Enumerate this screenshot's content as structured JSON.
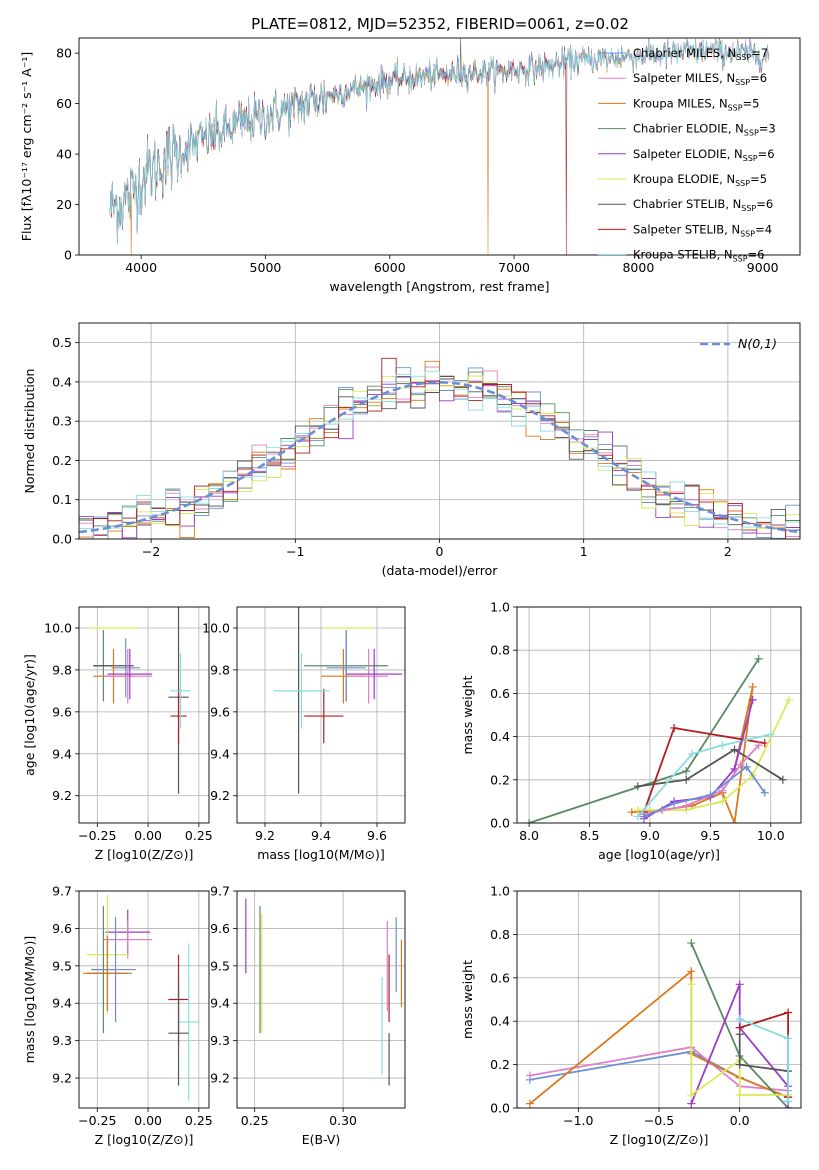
{
  "figure_title": "PLATE=0812, MJD=52352, FIBERID=0061, z=0.02",
  "colors": {
    "Chabrier MILES": "#6b8fd6",
    "Salpeter MILES": "#e07fc6",
    "Kroupa MILES": "#d97a1c",
    "Chabrier ELODIE": "#5a8a64",
    "Salpeter ELODIE": "#9b3dc8",
    "Kroupa ELODIE": "#d8ea5a",
    "Chabrier STELIB": "#555555",
    "Salpeter STELIB": "#b01e1e",
    "Kroupa STELIB": "#88dde0",
    "normal": "#6b8fd6"
  },
  "legend_labels": [
    {
      "base": "Chabrier MILES, N",
      "sub": "SSP",
      "tail": "=7",
      "key": "Chabrier MILES"
    },
    {
      "base": "Salpeter MILES, N",
      "sub": "SSP",
      "tail": "=6",
      "key": "Salpeter MILES"
    },
    {
      "base": "Kroupa MILES, N",
      "sub": "SSP",
      "tail": "=5",
      "key": "Kroupa MILES"
    },
    {
      "base": "Chabrier ELODIE, N",
      "sub": "SSP",
      "tail": "=3",
      "key": "Chabrier ELODIE"
    },
    {
      "base": "Salpeter ELODIE, N",
      "sub": "SSP",
      "tail": "=6",
      "key": "Salpeter ELODIE"
    },
    {
      "base": "Kroupa ELODIE, N",
      "sub": "SSP",
      "tail": "=5",
      "key": "Kroupa ELODIE"
    },
    {
      "base": "Chabrier STELIB, N",
      "sub": "SSP",
      "tail": "=6",
      "key": "Chabrier STELIB"
    },
    {
      "base": "Salpeter STELIB, N",
      "sub": "SSP",
      "tail": "=4",
      "key": "Salpeter STELIB"
    },
    {
      "base": "Kroupa STELIB, N",
      "sub": "SSP",
      "tail": "=6",
      "key": "Kroupa STELIB"
    }
  ],
  "chart_data": [
    {
      "id": "spectrum",
      "type": "line",
      "xlabel": "wavelength [Angstrom, rest frame]",
      "ylabel": "Flux [fλ10⁻¹⁷ erg cm⁻² s⁻¹ A⁻¹]",
      "xlim": [
        3500,
        9300
      ],
      "ylim": [
        0,
        86
      ],
      "xticks": [
        4000,
        5000,
        6000,
        7000,
        8000,
        9000
      ],
      "yticks": [
        0,
        20,
        40,
        60,
        80
      ],
      "legend": "top-right",
      "grid": false,
      "continuum": {
        "x": [
          3750,
          3900,
          4000,
          4200,
          4500,
          4800,
          5000,
          5200,
          5500,
          5800,
          6000,
          6300,
          6600,
          6900,
          7200,
          7500,
          7800,
          8000,
          8300,
          8600,
          8800,
          9000
        ],
        "y": [
          18,
          23,
          30,
          38,
          46,
          52,
          55,
          58,
          63,
          67,
          69,
          71,
          72,
          73,
          74,
          77,
          78,
          79,
          80,
          81,
          80,
          79
        ]
      },
      "features": [
        {
          "note": "drop",
          "series": "Kroupa MILES",
          "x": 3920,
          "y": 0
        },
        {
          "note": "drop",
          "series": "Kroupa MILES",
          "x": 6790,
          "y": 0
        },
        {
          "note": "drop",
          "series": "Salpeter STELIB",
          "x": 7420,
          "y": 0
        },
        {
          "note": "spike",
          "series": "Chabrier STELIB",
          "x": 6570,
          "y": 86
        }
      ]
    },
    {
      "id": "residuals",
      "type": "histogram",
      "xlabel": "(data-model)/error",
      "ylabel": "Normed distribution",
      "xlim": [
        -2.5,
        2.5
      ],
      "ylim": [
        0,
        0.55
      ],
      "xticks": [
        -2,
        -1,
        0,
        1,
        2
      ],
      "yticks": [
        0.0,
        0.1,
        0.2,
        0.3,
        0.4,
        0.5
      ],
      "grid": true,
      "legend": "top-right",
      "normal_label": "N(0,1)",
      "bin_width": 0.1
    },
    {
      "id": "age_vs_Z",
      "type": "errorbar",
      "xlabel": "Z [log10(Z/Z⊙)]",
      "ylabel": "age  [log10(age/yr)]",
      "xlim": [
        -0.34,
        0.3
      ],
      "ylim": [
        9.07,
        10.1
      ],
      "xticks": [
        -0.25,
        0.0,
        0.25
      ],
      "yticks": [
        9.2,
        9.4,
        9.6,
        9.8,
        10.0
      ],
      "grid": true,
      "points": [
        {
          "s": "Kroupa ELODIE",
          "x": -0.17,
          "xe": 0.12,
          "y": 10.0,
          "ye": 0.0
        },
        {
          "s": "Chabrier ELODIE",
          "x": -0.22,
          "xe": 0.05,
          "y": 9.82,
          "ye": 0.17
        },
        {
          "s": "Chabrier MILES",
          "x": -0.11,
          "xe": 0.07,
          "y": 9.81,
          "ye": 0.14
        },
        {
          "s": "Chabrier STELIB",
          "x": -0.17,
          "xe": 0.1,
          "y": 9.82,
          "ye": 0.0
        },
        {
          "s": "Kroupa MILES",
          "x": -0.17,
          "xe": 0.1,
          "y": 9.77,
          "ye": 0.13
        },
        {
          "s": "Salpeter MILES",
          "x": -0.1,
          "xe": 0.12,
          "y": 9.77,
          "ye": 0.13
        },
        {
          "s": "Salpeter ELODIE",
          "x": -0.09,
          "xe": 0.11,
          "y": 9.78,
          "ye": 0.12
        },
        {
          "s": "Chabrier STELIB",
          "x": 0.15,
          "xe": 0.05,
          "y": 9.67,
          "ye": 0.46
        },
        {
          "s": "Salpeter STELIB",
          "x": 0.15,
          "xe": 0.04,
          "y": 9.58,
          "ye": 0.13
        },
        {
          "s": "Kroupa STELIB",
          "x": 0.16,
          "xe": 0.05,
          "y": 9.7,
          "ye": 0.18
        }
      ]
    },
    {
      "id": "age_vs_mass",
      "type": "errorbar",
      "xlabel": "mass [log10(M/M⊙)]",
      "ylabel": "",
      "xlim": [
        9.1,
        9.7
      ],
      "ylim": [
        9.07,
        10.1
      ],
      "xticks": [
        9.2,
        9.4,
        9.6
      ],
      "yticks": [
        9.2,
        9.4,
        9.6,
        9.8,
        10.0
      ],
      "grid": true,
      "points": [
        {
          "s": "Kroupa ELODIE",
          "x": 9.5,
          "xe": 0.09,
          "y": 10.0,
          "ye": 0.0
        },
        {
          "s": "Chabrier ELODIE",
          "x": 9.49,
          "xe": 0.15,
          "y": 9.82,
          "ye": 0.17
        },
        {
          "s": "Chabrier MILES",
          "x": 9.49,
          "xe": 0.07,
          "y": 9.81,
          "ye": 0.14
        },
        {
          "s": "Kroupa MILES",
          "x": 9.48,
          "xe": 0.08,
          "y": 9.77,
          "ye": 0.13
        },
        {
          "s": "Salpeter MILES",
          "x": 9.57,
          "xe": 0.07,
          "y": 9.77,
          "ye": 0.13
        },
        {
          "s": "Salpeter ELODIE",
          "x": 9.59,
          "xe": 0.1,
          "y": 9.78,
          "ye": 0.12
        },
        {
          "s": "Chabrier STELIB",
          "x": 9.32,
          "xe": 0.0,
          "y": 9.67,
          "ye": 0.46
        },
        {
          "s": "Salpeter STELIB",
          "x": 9.41,
          "xe": 0.07,
          "y": 9.58,
          "ye": 0.13
        },
        {
          "s": "Kroupa STELIB",
          "x": 9.33,
          "xe": 0.1,
          "y": 9.7,
          "ye": 0.18
        }
      ]
    },
    {
      "id": "weight_vs_age",
      "type": "line",
      "xlabel": "age  [log10(age/yr)]",
      "ylabel": "mass weight",
      "xlim": [
        7.9,
        10.25
      ],
      "ylim": [
        0,
        1
      ],
      "xticks": [
        8.0,
        8.5,
        9.0,
        9.5,
        10.0
      ],
      "yticks": [
        0.0,
        0.2,
        0.4,
        0.6,
        0.8,
        1.0
      ],
      "grid": true,
      "series": [
        {
          "name": "Chabrier ELODIE",
          "x": [
            8.0,
            9.3,
            9.9
          ],
          "y": [
            0.0,
            0.24,
            0.76
          ]
        },
        {
          "name": "Kroupa MILES",
          "x": [
            8.85,
            9.1,
            9.35,
            9.6,
            9.7,
            9.85,
            9.7
          ],
          "y": [
            0.05,
            0.06,
            0.08,
            0.14,
            0.0,
            0.63,
            0.25
          ]
        },
        {
          "name": "Salpeter STELIB",
          "x": [
            8.95,
            9.2,
            9.95
          ],
          "y": [
            0.05,
            0.44,
            0.37
          ]
        },
        {
          "name": "Kroupa ELODIE",
          "x": [
            8.9,
            9.3,
            9.6,
            9.85,
            10.15
          ],
          "y": [
            0.06,
            0.06,
            0.1,
            0.22,
            0.57
          ]
        },
        {
          "name": "Chabrier STELIB",
          "x": [
            8.9,
            9.3,
            9.7,
            10.1
          ],
          "y": [
            0.17,
            0.2,
            0.34,
            0.2
          ]
        },
        {
          "name": "Kroupa STELIB",
          "x": [
            8.9,
            9.35,
            9.6,
            10.0
          ],
          "y": [
            0.03,
            0.32,
            0.36,
            0.41
          ]
        },
        {
          "name": "Salpeter ELODIE",
          "x": [
            8.95,
            9.2,
            9.5,
            9.7,
            9.85
          ],
          "y": [
            0.02,
            0.1,
            0.12,
            0.25,
            0.57
          ]
        },
        {
          "name": "Salpeter MILES",
          "x": [
            8.95,
            9.3,
            9.6,
            9.75,
            9.9
          ],
          "y": [
            0.04,
            0.08,
            0.15,
            0.27,
            0.36
          ]
        },
        {
          "name": "Chabrier MILES",
          "x": [
            8.95,
            9.2,
            9.5,
            9.8,
            9.95
          ],
          "y": [
            0.03,
            0.09,
            0.13,
            0.26,
            0.14
          ]
        }
      ]
    },
    {
      "id": "mass_vs_Z",
      "type": "errorbar",
      "xlabel": "Z [log10(Z/Z⊙)]",
      "ylabel": "mass [log10(M/M⊙)]",
      "xlim": [
        -0.34,
        0.3
      ],
      "ylim": [
        9.12,
        9.7
      ],
      "xticks": [
        -0.25,
        0.0,
        0.25
      ],
      "yticks": [
        9.2,
        9.3,
        9.4,
        9.5,
        9.6,
        9.7
      ],
      "grid": true,
      "points": [
        {
          "s": "Salpeter ELODIE",
          "x": -0.1,
          "xe": 0.11,
          "y": 9.59,
          "ye": 0.06
        },
        {
          "s": "Salpeter MILES",
          "x": -0.1,
          "xe": 0.12,
          "y": 9.57,
          "ye": 0.05
        },
        {
          "s": "Kroupa ELODIE",
          "x": -0.2,
          "xe": 0.1,
          "y": 9.53,
          "ye": 0.16
        },
        {
          "s": "Chabrier ELODIE",
          "x": -0.22,
          "xe": 0.06,
          "y": 9.49,
          "ye": 0.17
        },
        {
          "s": "Chabrier MILES",
          "x": -0.16,
          "xe": 0.1,
          "y": 9.49,
          "ye": 0.14
        },
        {
          "s": "Chabrier STELIB",
          "x": -0.2,
          "xe": 0.1,
          "y": 9.48,
          "ye": 0.1
        },
        {
          "s": "Kroupa MILES",
          "x": -0.2,
          "xe": 0.12,
          "y": 9.48,
          "ye": 0.1
        },
        {
          "s": "Salpeter STELIB",
          "x": 0.15,
          "xe": 0.05,
          "y": 9.41,
          "ye": 0.12
        },
        {
          "s": "Kroupa STELIB",
          "x": 0.2,
          "xe": 0.05,
          "y": 9.35,
          "ye": 0.21
        },
        {
          "s": "Chabrier STELIB",
          "x": 0.15,
          "xe": 0.05,
          "y": 9.32,
          "ye": 0.14
        }
      ]
    },
    {
      "id": "mass_vs_ebv",
      "type": "errorbar",
      "xlabel": "E(B-V)",
      "ylabel": "",
      "xlim": [
        0.24,
        0.335
      ],
      "ylim": [
        9.12,
        9.7
      ],
      "xticks": [
        0.25,
        0.3
      ],
      "yticks": [
        9.2,
        9.3,
        9.4,
        9.5,
        9.6,
        9.7
      ],
      "grid": true,
      "points": [
        {
          "s": "Salpeter ELODIE",
          "x": 0.245,
          "xe": 0,
          "y": 9.58,
          "ye": 0.1
        },
        {
          "s": "Chabrier ELODIE",
          "x": 0.253,
          "xe": 0,
          "y": 9.49,
          "ye": 0.17
        },
        {
          "s": "Kroupa ELODIE",
          "x": 0.254,
          "xe": 0,
          "y": 9.48,
          "ye": 0.16
        },
        {
          "s": "Kroupa STELIB",
          "x": 0.322,
          "xe": 0,
          "y": 9.34,
          "ye": 0.13
        },
        {
          "s": "Salpeter STELIB",
          "x": 0.326,
          "xe": 0,
          "y": 9.44,
          "ye": 0.09
        },
        {
          "s": "Salpeter MILES",
          "x": 0.325,
          "xe": 0,
          "y": 9.5,
          "ye": 0.12
        },
        {
          "s": "Chabrier STELIB",
          "x": 0.326,
          "xe": 0,
          "y": 9.25,
          "ye": 0.07
        },
        {
          "s": "Chabrier MILES",
          "x": 0.33,
          "xe": 0,
          "y": 9.53,
          "ye": 0.1
        },
        {
          "s": "Kroupa MILES",
          "x": 0.333,
          "xe": 0,
          "y": 9.48,
          "ye": 0.09
        }
      ]
    },
    {
      "id": "weight_vs_Z",
      "type": "line",
      "xlabel": "Z [log10(Z/Z⊙)]",
      "ylabel": "mass weight",
      "xlim": [
        -1.38,
        0.38
      ],
      "ylim": [
        0,
        1
      ],
      "xticks": [
        -1.0,
        -0.5,
        0.0
      ],
      "yticks": [
        0.0,
        0.2,
        0.4,
        0.6,
        0.8,
        1.0
      ],
      "grid": true,
      "series": [
        {
          "name": "Chabrier MILES",
          "x": [
            -1.3,
            -0.3,
            0.0,
            0.3
          ],
          "y": [
            0.13,
            0.26,
            0.14,
            0.05
          ]
        },
        {
          "name": "Salpeter MILES",
          "x": [
            -1.3,
            -0.3,
            0.0,
            0.3
          ],
          "y": [
            0.15,
            0.28,
            0.1,
            0.08
          ]
        },
        {
          "name": "Kroupa MILES",
          "x": [
            -1.3,
            -0.3,
            -0.3,
            0.0,
            0.3
          ],
          "y": [
            0.02,
            0.63,
            0.25,
            0.14,
            0.05
          ]
        },
        {
          "name": "Chabrier ELODIE",
          "x": [
            -0.3,
            0.0,
            0.3
          ],
          "y": [
            0.76,
            0.24,
            0.0
          ]
        },
        {
          "name": "Salpeter ELODIE",
          "x": [
            -0.3,
            0.0,
            0.0,
            0.3,
            0.3
          ],
          "y": [
            0.02,
            0.57,
            0.37,
            0.1,
            0.0
          ]
        },
        {
          "name": "Kroupa ELODIE",
          "x": [
            -0.3,
            -0.3,
            0.0,
            0.0,
            0.3
          ],
          "y": [
            0.57,
            0.06,
            0.22,
            0.06,
            0.06
          ]
        },
        {
          "name": "Chabrier STELIB",
          "x": [
            0.0,
            0.0,
            0.3,
            0.3
          ],
          "y": [
            0.34,
            0.2,
            0.17,
            0.03
          ]
        },
        {
          "name": "Salpeter STELIB",
          "x": [
            0.0,
            0.3,
            0.3
          ],
          "y": [
            0.37,
            0.44,
            0.05
          ]
        },
        {
          "name": "Kroupa STELIB",
          "x": [
            0.0,
            0.3,
            0.3
          ],
          "y": [
            0.41,
            0.32,
            0.03
          ]
        }
      ]
    }
  ]
}
